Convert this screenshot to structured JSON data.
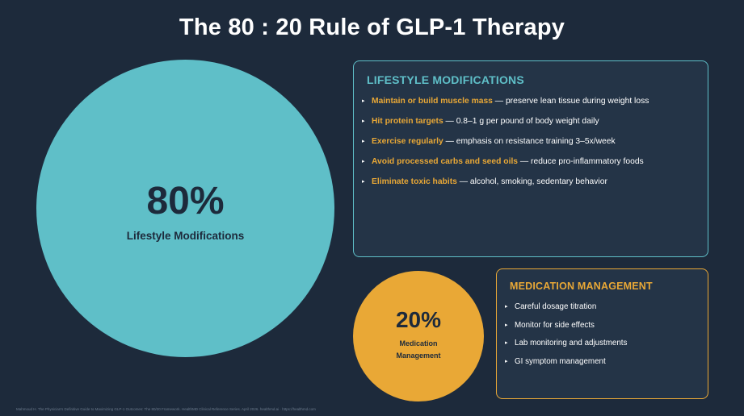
{
  "title": "The 80 : 20 Rule of GLP-1 Therapy",
  "lifestyle_circle": {
    "percent": "80%",
    "label": "Lifestyle Modifications"
  },
  "medication_circle": {
    "percent": "20%",
    "label_line1": "Medication",
    "label_line2": "Management"
  },
  "lifestyle_box": {
    "title": "LIFESTYLE MODIFICATIONS",
    "items": [
      {
        "highlight": "Maintain or build muscle mass",
        "text": " — preserve lean tissue during weight loss"
      },
      {
        "highlight": "Hit protein targets",
        "text": " — 0.8–1 g per pound of body weight daily"
      },
      {
        "highlight": "Exercise regularly",
        "text": " — emphasis on resistance training 3–5x/week"
      },
      {
        "highlight": "Avoid processed carbs and seed oils",
        "text": " — reduce pro-inflammatory foods"
      },
      {
        "highlight": "Eliminate toxic habits",
        "text": " — alcohol, smoking, sedentary behavior"
      }
    ]
  },
  "medication_box": {
    "title": "MEDICATION MANAGEMENT",
    "items": [
      "Careful dosage titration",
      "Monitor for side effects",
      "Lab monitoring and adjustments",
      "GI symptom management"
    ]
  },
  "bullet_glyph": "▸",
  "footnote": "Mahmoud H. The Physician's Definitive Guide to Maximizing GLP-1 Outcomes: The 80/20 Framework. HealthMD Clinical Reference Series. April 2026. healthmd.ai · https://healthmd.com",
  "colors": {
    "background": "#1d2a3b",
    "teal": "#5fbfc8",
    "orange": "#e9a836",
    "panel": "#243447",
    "text": "#ffffff"
  }
}
